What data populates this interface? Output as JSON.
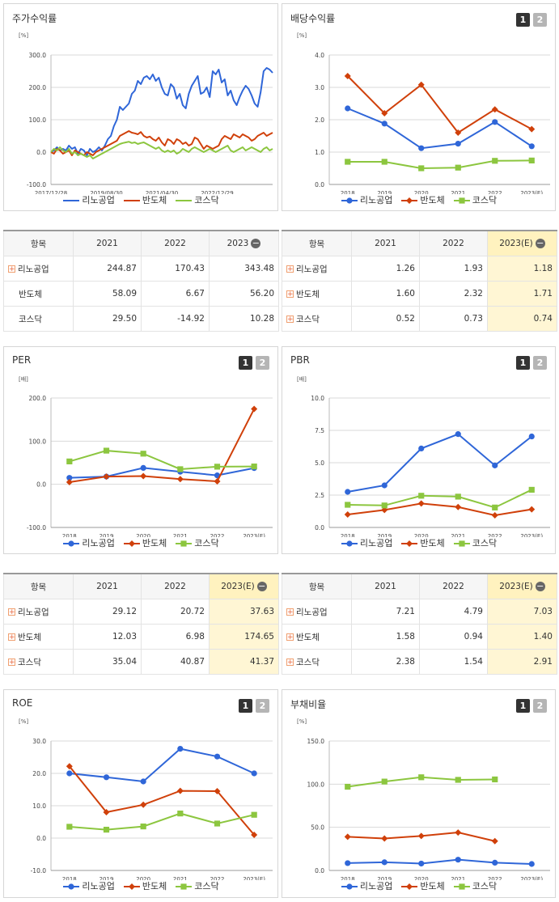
{
  "colors": {
    "company": "#2f66d8",
    "semi": "#d0400a",
    "kosdaq": "#8cc63f"
  },
  "legend": [
    "리노공업",
    "반도체",
    "코스닥"
  ],
  "buttons": {
    "one": "1",
    "two": "2"
  },
  "chart_data": [
    {
      "id": "stock",
      "title": "주가수익률",
      "type": "line",
      "unit": "[%]",
      "ylim": [
        -100,
        300
      ],
      "yticks": [
        "300.0",
        "200.0",
        "100.0",
        "0.0",
        "-100.0"
      ],
      "xticks": [
        "2017/12/28",
        "2019/08/30",
        "2021/04/30",
        "2022/12/29"
      ],
      "series": [
        {
          "name": "리노공업",
          "values": [
            0,
            5,
            15,
            5,
            10,
            5,
            20,
            10,
            15,
            -5,
            10,
            5,
            -10,
            10,
            0,
            5,
            15,
            5,
            20,
            40,
            50,
            80,
            100,
            140,
            130,
            140,
            150,
            180,
            190,
            220,
            210,
            230,
            235,
            225,
            240,
            220,
            230,
            200,
            180,
            175,
            210,
            200,
            165,
            180,
            145,
            135,
            180,
            205,
            220,
            235,
            180,
            185,
            200,
            170,
            250,
            240,
            255,
            215,
            225,
            175,
            190,
            160,
            145,
            170,
            190,
            205,
            195,
            175,
            150,
            140,
            185,
            250,
            260,
            255,
            245
          ]
        },
        {
          "name": "반도체",
          "values": [
            0,
            -5,
            10,
            5,
            -5,
            0,
            5,
            -10,
            5,
            0,
            -5,
            -10,
            0,
            -5,
            -10,
            0,
            5,
            10,
            15,
            20,
            25,
            30,
            35,
            50,
            55,
            60,
            65,
            60,
            58,
            55,
            62,
            50,
            45,
            48,
            40,
            35,
            45,
            30,
            20,
            40,
            35,
            25,
            40,
            35,
            25,
            30,
            20,
            25,
            45,
            40,
            25,
            10,
            20,
            15,
            10,
            15,
            20,
            40,
            50,
            45,
            40,
            55,
            50,
            45,
            55,
            50,
            45,
            35,
            40,
            50,
            55,
            60,
            50,
            55,
            60
          ]
        },
        {
          "name": "코스닥",
          "values": [
            0,
            10,
            5,
            15,
            5,
            0,
            10,
            -5,
            0,
            -10,
            -5,
            -10,
            -15,
            -10,
            -20,
            -15,
            -10,
            -5,
            0,
            5,
            10,
            15,
            20,
            25,
            28,
            30,
            32,
            28,
            30,
            25,
            28,
            30,
            25,
            20,
            15,
            10,
            15,
            5,
            0,
            5,
            0,
            5,
            -5,
            0,
            10,
            5,
            0,
            10,
            15,
            10,
            5,
            0,
            5,
            10,
            5,
            0,
            5,
            10,
            15,
            20,
            5,
            0,
            5,
            10,
            15,
            5,
            10,
            15,
            10,
            5,
            0,
            10,
            15,
            5,
            10
          ]
        }
      ]
    },
    {
      "id": "dividend",
      "title": "배당수익률",
      "type": "line",
      "unit": "[%]",
      "ylim": [
        0,
        4
      ],
      "yticks": [
        "4.0",
        "3.0",
        "2.0",
        "1.0",
        "0.0"
      ],
      "categories": [
        "2018",
        "2019",
        "2020",
        "2021",
        "2022",
        "2023(E)"
      ],
      "series": [
        {
          "name": "리노공업",
          "values": [
            2.35,
            1.88,
            1.12,
            1.26,
            1.93,
            1.18
          ]
        },
        {
          "name": "반도체",
          "values": [
            3.35,
            2.2,
            3.08,
            1.6,
            2.32,
            1.71
          ]
        },
        {
          "name": "코스닥",
          "values": [
            0.7,
            0.7,
            0.5,
            0.52,
            0.73,
            0.74
          ]
        }
      ]
    },
    {
      "id": "per",
      "title": "PER",
      "type": "line",
      "unit": "[배]",
      "ylim": [
        -100,
        200
      ],
      "yticks": [
        "200.0",
        "100.0",
        "0.0",
        "-100.0"
      ],
      "categories": [
        "2018",
        "2019",
        "2020",
        "2021",
        "2022",
        "2023(E)"
      ],
      "series": [
        {
          "name": "리노공업",
          "values": [
            15,
            18,
            38,
            29.12,
            20.72,
            37.63
          ]
        },
        {
          "name": "반도체",
          "values": [
            5,
            18,
            19,
            12.03,
            6.98,
            174.65
          ]
        },
        {
          "name": "코스닥",
          "values": [
            53,
            78,
            71,
            35.04,
            40.87,
            41.37
          ]
        }
      ]
    },
    {
      "id": "pbr",
      "title": "PBR",
      "type": "line",
      "unit": "[배]",
      "ylim": [
        0,
        10
      ],
      "yticks": [
        "10.0",
        "7.5",
        "5.0",
        "2.5",
        "0.0"
      ],
      "categories": [
        "2018",
        "2019",
        "2020",
        "2021",
        "2022",
        "2023(E)"
      ],
      "series": [
        {
          "name": "리노공업",
          "values": [
            2.75,
            3.25,
            6.1,
            7.21,
            4.79,
            7.03
          ]
        },
        {
          "name": "반도체",
          "values": [
            1.0,
            1.35,
            1.85,
            1.58,
            0.94,
            1.4
          ]
        },
        {
          "name": "코스닥",
          "values": [
            1.75,
            1.7,
            2.45,
            2.38,
            1.54,
            2.91
          ]
        }
      ]
    },
    {
      "id": "roe",
      "title": "ROE",
      "type": "line",
      "unit": "[%]",
      "ylim": [
        -10,
        30
      ],
      "yticks": [
        "30.0",
        "20.0",
        "10.0",
        "0.0",
        "-10.0"
      ],
      "categories": [
        "2018",
        "2019",
        "2020",
        "2021",
        "2022",
        "2023(E)"
      ],
      "series": [
        {
          "name": "리노공업",
          "values": [
            20,
            18.8,
            17.5,
            27.6,
            25.2,
            20
          ]
        },
        {
          "name": "반도체",
          "values": [
            22.2,
            8,
            10.3,
            14.6,
            14.5,
            1
          ]
        },
        {
          "name": "코스닥",
          "values": [
            3.5,
            2.6,
            3.6,
            7.6,
            4.5,
            7.2
          ]
        }
      ]
    },
    {
      "id": "debt",
      "title": "부채비율",
      "type": "line",
      "unit": "[%]",
      "ylim": [
        0,
        150
      ],
      "yticks": [
        "150.0",
        "100.0",
        "50.0",
        "0.0"
      ],
      "categories": [
        "2018",
        "2019",
        "2020",
        "2021",
        "2022",
        "2023(E)"
      ],
      "series": [
        {
          "name": "리노공업",
          "values": [
            8.5,
            9.5,
            8,
            12.5,
            9,
            7.5
          ]
        },
        {
          "name": "반도체",
          "values": [
            39,
            37,
            40,
            44,
            34,
            null
          ]
        },
        {
          "name": "코스닥",
          "values": [
            97,
            103,
            108,
            105,
            105.5,
            null
          ]
        }
      ]
    }
  ],
  "tables": [
    {
      "id": "stock",
      "headers": [
        "항목",
        "2021",
        "2022",
        "2023"
      ],
      "header_icon": "minus",
      "highlight_last": false,
      "rows": [
        {
          "name": "리노공업",
          "plus": true,
          "values": [
            "244.87",
            "170.43",
            "343.48"
          ]
        },
        {
          "name": "반도체",
          "plus": false,
          "values": [
            "58.09",
            "6.67",
            "56.20"
          ]
        },
        {
          "name": "코스닥",
          "plus": false,
          "values": [
            "29.50",
            "-14.92",
            "10.28"
          ]
        }
      ]
    },
    {
      "id": "dividend",
      "headers": [
        "항목",
        "2021",
        "2022",
        "2023(E)"
      ],
      "header_icon": "minus",
      "highlight_last": true,
      "rows": [
        {
          "name": "리노공업",
          "plus": true,
          "values": [
            "1.26",
            "1.93",
            "1.18"
          ]
        },
        {
          "name": "반도체",
          "plus": true,
          "values": [
            "1.60",
            "2.32",
            "1.71"
          ]
        },
        {
          "name": "코스닥",
          "plus": true,
          "values": [
            "0.52",
            "0.73",
            "0.74"
          ]
        }
      ]
    },
    {
      "id": "per",
      "headers": [
        "항목",
        "2021",
        "2022",
        "2023(E)"
      ],
      "header_icon": "minus",
      "highlight_last": true,
      "rows": [
        {
          "name": "리노공업",
          "plus": true,
          "values": [
            "29.12",
            "20.72",
            "37.63"
          ]
        },
        {
          "name": "반도체",
          "plus": true,
          "values": [
            "12.03",
            "6.98",
            "174.65"
          ]
        },
        {
          "name": "코스닥",
          "plus": true,
          "values": [
            "35.04",
            "40.87",
            "41.37"
          ]
        }
      ]
    },
    {
      "id": "pbr",
      "headers": [
        "항목",
        "2021",
        "2022",
        "2023(E)"
      ],
      "header_icon": "minus",
      "highlight_last": true,
      "rows": [
        {
          "name": "리노공업",
          "plus": true,
          "values": [
            "7.21",
            "4.79",
            "7.03"
          ]
        },
        {
          "name": "반도체",
          "plus": true,
          "values": [
            "1.58",
            "0.94",
            "1.40"
          ]
        },
        {
          "name": "코스닥",
          "plus": true,
          "values": [
            "2.38",
            "1.54",
            "2.91"
          ]
        }
      ]
    }
  ]
}
